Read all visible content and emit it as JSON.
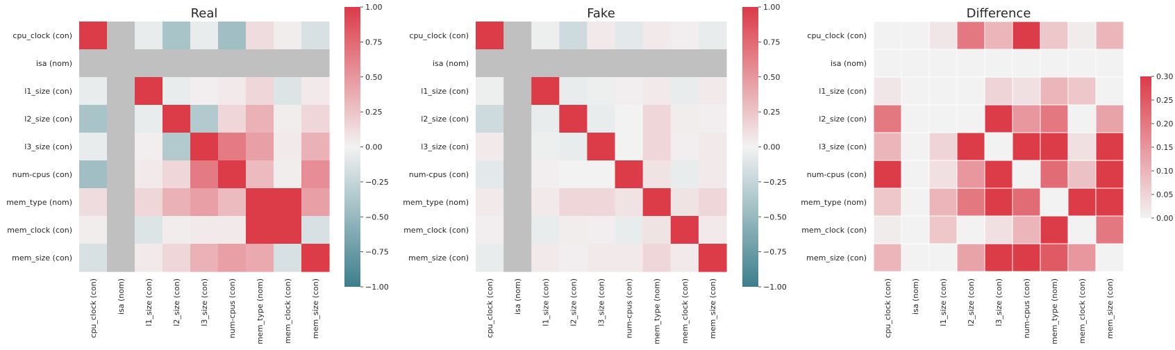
{
  "chart_data": [
    {
      "type": "heatmap",
      "title": "Real",
      "labels": [
        "cpu_clock (con)",
        "isa (nom)",
        "l1_size (con)",
        "l2_size (con)",
        "l3_size (con)",
        "num-cpus (con)",
        "mem_type (nom)",
        "mem_clock (con)",
        "mem_size (con)"
      ],
      "values": [
        [
          1.0,
          null,
          -0.05,
          -0.4,
          -0.05,
          -0.45,
          0.12,
          0.03,
          -0.15
        ],
        [
          null,
          null,
          null,
          null,
          null,
          null,
          null,
          null,
          null
        ],
        [
          -0.05,
          null,
          1.0,
          -0.05,
          0.02,
          0.05,
          0.15,
          -0.12,
          0.05
        ],
        [
          -0.4,
          null,
          -0.05,
          1.0,
          -0.35,
          0.15,
          0.35,
          0.03,
          0.15
        ],
        [
          -0.05,
          null,
          0.02,
          -0.35,
          1.0,
          0.65,
          0.45,
          0.05,
          0.35
        ],
        [
          -0.45,
          null,
          0.05,
          0.15,
          0.65,
          1.0,
          0.3,
          0.03,
          0.55
        ],
        [
          0.12,
          null,
          0.15,
          0.35,
          0.45,
          0.3,
          1.0,
          1.0,
          0.45
        ],
        [
          0.03,
          null,
          -0.12,
          0.03,
          0.05,
          0.05,
          1.0,
          1.0,
          -0.15
        ],
        [
          -0.15,
          null,
          0.05,
          0.15,
          0.35,
          0.45,
          0.4,
          -0.15,
          1.0
        ]
      ],
      "colorbar": {
        "min": -1.0,
        "max": 1.0,
        "ticks": [
          "1.00",
          "0.75",
          "0.50",
          "0.25",
          "0.00",
          "−0.25",
          "−0.50",
          "−0.75",
          "−1.00"
        ]
      }
    },
    {
      "type": "heatmap",
      "title": "Fake",
      "labels": [
        "cpu_clock (con)",
        "isa (nom)",
        "l1_size (con)",
        "l2_size (con)",
        "l3_size (con)",
        "num-cpus (con)",
        "mem_type (nom)",
        "mem_clock (con)",
        "mem_size (con)"
      ],
      "values": [
        [
          1.0,
          null,
          -0.03,
          -0.2,
          0.05,
          -0.08,
          0.05,
          0.02,
          -0.05
        ],
        [
          null,
          null,
          null,
          null,
          null,
          null,
          null,
          null,
          null
        ],
        [
          -0.03,
          null,
          1.0,
          -0.05,
          -0.03,
          0.02,
          0.05,
          -0.05,
          0.05
        ],
        [
          -0.2,
          null,
          -0.05,
          1.0,
          -0.05,
          0.0,
          0.15,
          0.03,
          0.02
        ],
        [
          0.05,
          null,
          -0.03,
          -0.05,
          1.0,
          0.0,
          0.15,
          0.02,
          0.05
        ],
        [
          -0.08,
          null,
          0.02,
          0.0,
          0.0,
          1.0,
          0.08,
          -0.05,
          0.05
        ],
        [
          0.05,
          null,
          0.05,
          0.15,
          0.15,
          0.08,
          1.0,
          0.08,
          0.15
        ],
        [
          0.02,
          null,
          -0.05,
          0.03,
          0.02,
          -0.05,
          0.08,
          1.0,
          0.05
        ],
        [
          -0.05,
          null,
          0.05,
          0.02,
          0.05,
          0.05,
          0.15,
          0.05,
          1.0
        ]
      ],
      "colorbar": {
        "min": -1.0,
        "max": 1.0,
        "ticks": [
          "1.00",
          "0.75",
          "0.50",
          "0.25",
          "0.00",
          "−0.25",
          "−0.50",
          "−0.75",
          "−1.00"
        ]
      }
    },
    {
      "type": "heatmap",
      "title": "Difference",
      "labels": [
        "cpu_clock (con)",
        "isa (nom)",
        "l1_size (con)",
        "l2_size (con)",
        "l3_size (con)",
        "num-cpus (con)",
        "mem_type (nom)",
        "mem_clock (con)",
        "mem_size (con)"
      ],
      "values": [
        [
          0.0,
          0.0,
          0.02,
          0.2,
          0.1,
          0.37,
          0.07,
          0.01,
          0.1
        ],
        [
          0.0,
          0.0,
          0.0,
          0.0,
          0.0,
          0.0,
          0.0,
          0.0,
          0.0
        ],
        [
          0.02,
          0.0,
          0.0,
          0.0,
          0.05,
          0.03,
          0.1,
          0.07,
          0.0
        ],
        [
          0.2,
          0.0,
          0.0,
          0.0,
          0.3,
          0.15,
          0.2,
          0.0,
          0.13
        ],
        [
          0.1,
          0.0,
          0.05,
          0.3,
          0.0,
          0.65,
          0.3,
          0.03,
          0.3
        ],
        [
          0.37,
          0.0,
          0.03,
          0.15,
          0.65,
          0.0,
          0.22,
          0.08,
          0.5
        ],
        [
          0.07,
          0.0,
          0.1,
          0.2,
          0.3,
          0.22,
          0.0,
          0.92,
          0.3
        ],
        [
          0.01,
          0.0,
          0.07,
          0.0,
          0.03,
          0.1,
          0.92,
          0.0,
          0.2
        ],
        [
          0.1,
          0.0,
          0.0,
          0.13,
          0.3,
          0.4,
          0.25,
          0.15,
          0.0
        ]
      ],
      "colorbar": {
        "min": 0.0,
        "max": 0.3,
        "ticks": [
          "0.30",
          "0.25",
          "0.20",
          "0.15",
          "0.10",
          "0.05",
          "0.00"
        ]
      }
    }
  ],
  "colors": {
    "negative": "#3c7e8c",
    "neutral": "#f2f2f2",
    "positive": "#dc3b48",
    "missing": "#c0c0c0",
    "text": "#262626"
  }
}
